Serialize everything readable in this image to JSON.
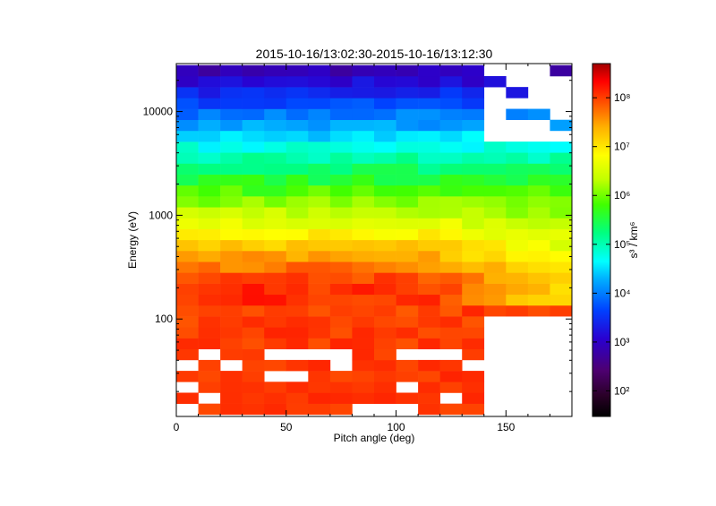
{
  "chart_data": {
    "type": "heatmap",
    "title": "2015-10-16/13:02:30-2015-10-16/13:12:30",
    "xlabel": "Pitch angle (deg)",
    "ylabel": "Energy (eV)",
    "x_scale": "linear",
    "y_scale": "log",
    "xlim": [
      0,
      180
    ],
    "ylim": [
      11.5,
      29000
    ],
    "x_ticks": [
      "0",
      "50",
      "100",
      "150"
    ],
    "y_ticks": [
      "100",
      "1000",
      "10000"
    ],
    "x_bin_width_deg": 10,
    "energy_range_eV": [
      12,
      28000
    ],
    "colorbar": {
      "label": "s³ / km⁶",
      "scale": "log",
      "range": [
        30,
        500000000
      ],
      "ticks": [
        "10²",
        "10³",
        "10⁴",
        "10⁵",
        "10⁶",
        "10⁷",
        "10⁸"
      ],
      "colormap": "rainbow (black → purple → blue → cyan → green → yellow → orange → red → dark red)"
    },
    "description": "Phase space density vs pitch angle and energy; highest values (~10^8) at low energies (<500 eV) over 0-120 deg, decreasing to ~10^3 at ~20 keV; empty bins at high pitch angles for low energies."
  }
}
